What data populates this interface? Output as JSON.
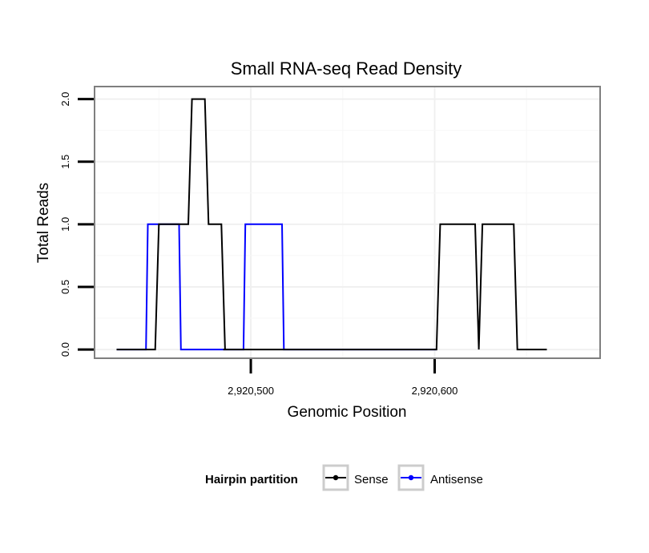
{
  "chart_data": {
    "type": "line",
    "title": "Small RNA-seq Read Density",
    "xlabel": "Genomic Position",
    "ylabel": "Total Reads",
    "xlim": [
      2920415,
      2920690
    ],
    "ylim": [
      -0.07,
      2.1
    ],
    "x_ticks": [
      2920500,
      2920600
    ],
    "x_tick_labels": [
      "2,920,500",
      "2,920,600"
    ],
    "y_ticks": [
      0,
      0.5,
      1,
      1.5,
      2
    ],
    "y_tick_labels": [
      "0.0",
      "0.5",
      "1.0",
      "1.5",
      "2.0"
    ],
    "grid": true,
    "legend_position": "bottom",
    "legend_title": "Hairpin partition",
    "series": [
      {
        "name": "Sense",
        "color": "#000000",
        "x": [
          2920427,
          2920448,
          2920450,
          2920466,
          2920468,
          2920475,
          2920477,
          2920484,
          2920486,
          2920485,
          2920601,
          2920603,
          2920622,
          2920624,
          2920626,
          2920643,
          2920645,
          2920661
        ],
        "y": [
          0,
          0,
          1,
          1,
          2,
          2,
          1,
          1,
          0,
          0,
          0,
          1,
          1,
          0,
          1,
          1,
          0,
          0
        ]
      },
      {
        "name": "Antisense",
        "color": "#0000ff",
        "x": [
          2920427,
          2920443,
          2920444,
          2920461,
          2920462,
          2920496,
          2920497,
          2920517,
          2920518,
          2920601
        ],
        "y": [
          0,
          0,
          1,
          1,
          0,
          0,
          1,
          1,
          0,
          0
        ]
      }
    ]
  }
}
